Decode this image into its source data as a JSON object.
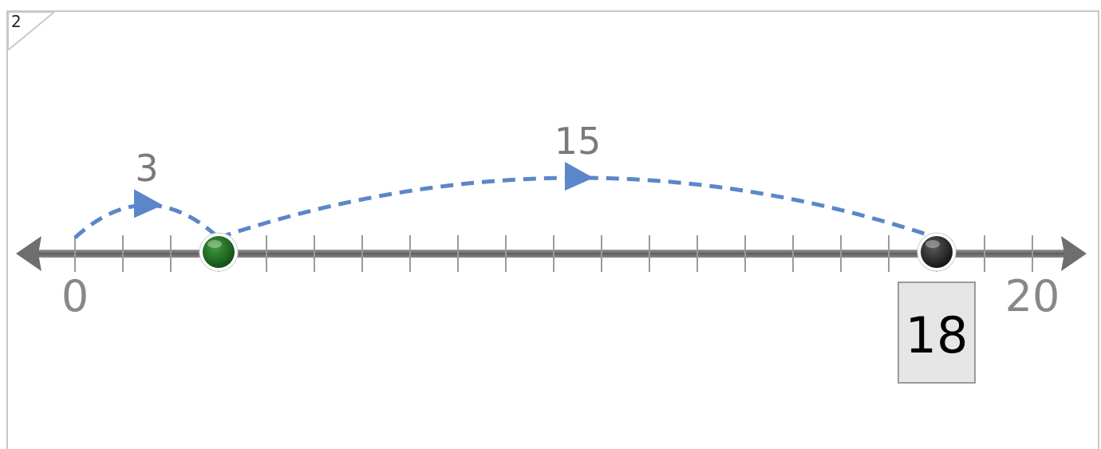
{
  "problem": {
    "number": "2"
  },
  "number_line": {
    "min": 0,
    "max": 20,
    "min_label": "0",
    "max_label": "20",
    "tick_step": 1
  },
  "jumps": [
    {
      "from": 0,
      "to": 3,
      "label": "3"
    },
    {
      "from": 3,
      "to": 18,
      "label": "15"
    }
  ],
  "points": [
    {
      "value": 3,
      "color": "#1f6b1f",
      "name": "green-point"
    },
    {
      "value": 18,
      "color": "#2a2a2a",
      "name": "black-point"
    }
  ],
  "answer_box": {
    "value": "18"
  },
  "colors": {
    "jump_arc": "#5b86c9",
    "line": "#7a7a7a",
    "label": "#888888",
    "answer_bg": "#e6e6e6"
  }
}
